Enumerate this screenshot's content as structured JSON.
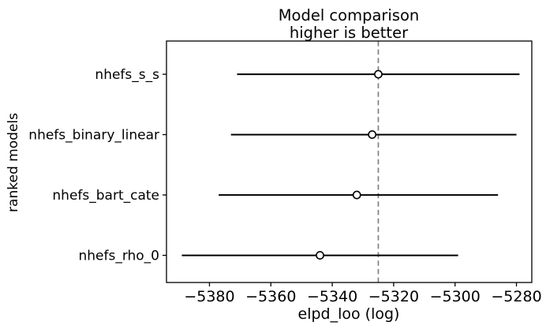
{
  "chart_data": {
    "type": "scatter",
    "title": "Model comparison",
    "subtitle": "higher is better",
    "xlabel": "elpd_loo (log)",
    "ylabel": "ranked models",
    "categories": [
      "nhefs_s_s",
      "nhefs_binary_linear",
      "nhefs_bart_cate",
      "nhefs_rho_0"
    ],
    "series": [
      {
        "name": "elpd_loo",
        "values": [
          -5325,
          -5327,
          -5332,
          -5344
        ],
        "error_low": [
          -5371,
          -5373,
          -5377,
          -5389
        ],
        "error_high": [
          -5279,
          -5280,
          -5286,
          -5299
        ]
      }
    ],
    "reference_line": {
      "x": -5325,
      "style": "dashed",
      "color": "#808080"
    },
    "xlim": [
      -5394,
      -5275
    ],
    "xticks": [
      -5380,
      -5360,
      -5340,
      -5320,
      -5300,
      -5280
    ],
    "xtick_labels": [
      "−5380",
      "−5360",
      "−5340",
      "−5320",
      "−5300",
      "−5280"
    ],
    "grid": false,
    "legend": false,
    "orientation": "horizontal",
    "marker": {
      "shape": "open-circle",
      "fill": "#ffffff",
      "stroke": "#000000"
    },
    "line_color": "#000000",
    "axis_color": "#000000",
    "text_color": "#000000",
    "background_color": "#ffffff"
  }
}
